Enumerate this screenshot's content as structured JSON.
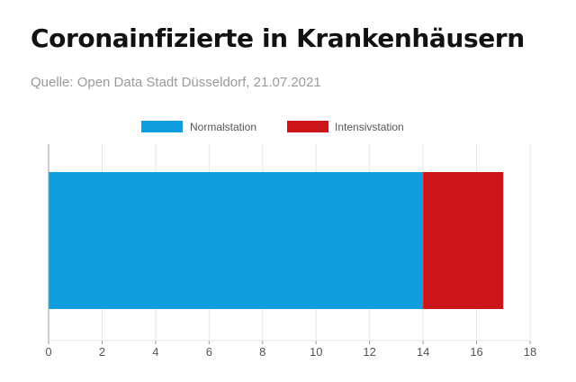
{
  "title": "Coronainfizierte in Krankenhäusern",
  "subtitle": "Quelle: Open Data Stadt Düsseldorf, 21.07.2021",
  "colors": {
    "normal": "#0e9dde",
    "intensiv": "#cc1519",
    "grid": "#e6e6e6",
    "axis": "#999999"
  },
  "chart_data": {
    "type": "bar",
    "orientation": "horizontal",
    "stacked": true,
    "categories": [
      ""
    ],
    "series": [
      {
        "name": "Normalstation",
        "values": [
          14
        ]
      },
      {
        "name": "Intensivstation",
        "values": [
          3
        ]
      }
    ],
    "xlim": [
      0,
      18
    ],
    "xticks": [
      "0",
      "2",
      "4",
      "6",
      "8",
      "10",
      "12",
      "14",
      "16",
      "18"
    ],
    "legend": "top-center",
    "grid": true
  }
}
